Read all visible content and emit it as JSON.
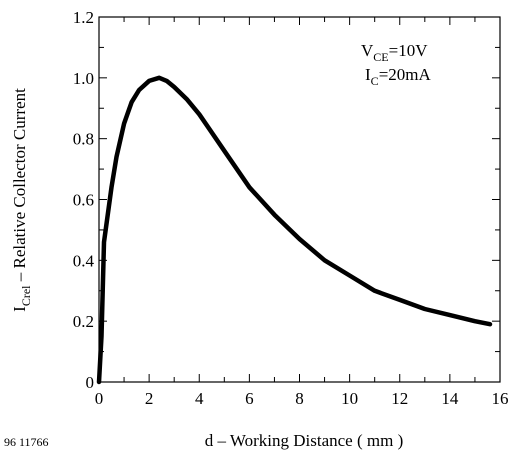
{
  "chart_data": {
    "type": "line",
    "title": "",
    "xlabel": "d – Working Distance  ( mm )",
    "ylabel_main": "I",
    "ylabel_sub": "Crel",
    "ylabel_rest": " – Relative Collector Current",
    "xlim": [
      0,
      16
    ],
    "ylim": [
      0,
      1.2
    ],
    "x_ticks": [
      0,
      2,
      4,
      6,
      8,
      10,
      12,
      14,
      16
    ],
    "x_tick_labels": [
      "0",
      "2",
      "4",
      "6",
      "8",
      "10",
      "12",
      "14",
      "16"
    ],
    "y_ticks": [
      0,
      0.2,
      0.4,
      0.6,
      0.8,
      1.0,
      1.2
    ],
    "y_tick_labels": [
      "0",
      "0.2",
      "0.4",
      "0.6",
      "0.8",
      "1.0",
      "1.2"
    ],
    "grid": false,
    "annotations": {
      "vce_main": "V",
      "vce_sub": "CE",
      "vce_value": "=10V",
      "ic_main": "I",
      "ic_sub": "C",
      "ic_value": "=20mA"
    },
    "figure_code": "96 11766",
    "series": [
      {
        "x": [
          0.0,
          0.1,
          0.2,
          0.3,
          0.5,
          0.7,
          1.0,
          1.3,
          1.6,
          2.0,
          2.4,
          2.7,
          3.0,
          3.5,
          4.0,
          5.0,
          6.0,
          7.0,
          8.0,
          9.0,
          10.0,
          11.0,
          12.0,
          13.0,
          14.0,
          15.0,
          15.6
        ],
        "y": [
          0.0,
          0.15,
          0.46,
          0.52,
          0.64,
          0.74,
          0.85,
          0.92,
          0.96,
          0.99,
          1.0,
          0.99,
          0.97,
          0.93,
          0.88,
          0.76,
          0.64,
          0.55,
          0.47,
          0.4,
          0.35,
          0.3,
          0.27,
          0.24,
          0.22,
          0.2,
          0.19
        ]
      }
    ]
  }
}
